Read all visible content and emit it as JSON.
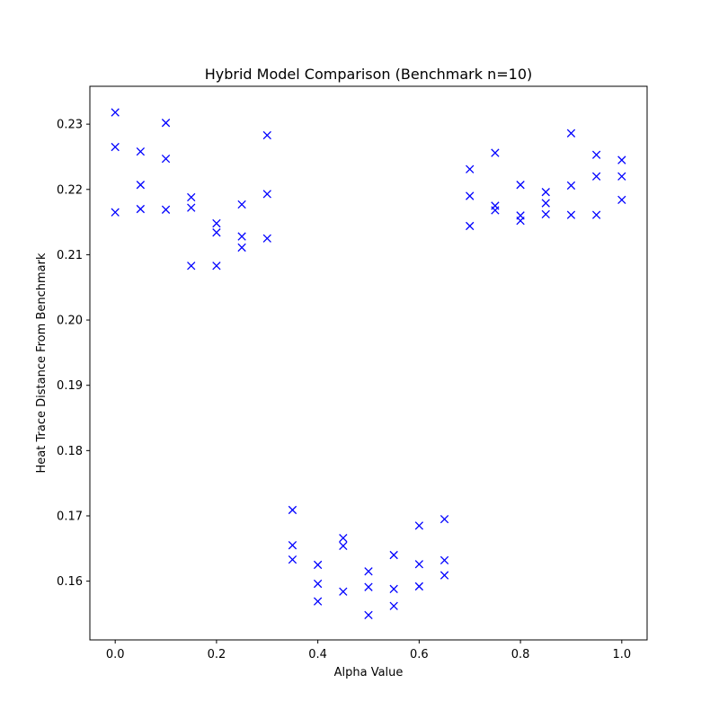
{
  "chart_data": {
    "type": "scatter",
    "title": "Hybrid Model Comparison (Benchmark n=10)",
    "xlabel": "Alpha Value",
    "ylabel": "Heat Trace Distance From Benchmark",
    "xlim": [
      -0.05,
      1.05
    ],
    "ylim": [
      0.151,
      0.2358
    ],
    "x_ticks": [
      0.0,
      0.2,
      0.4,
      0.6,
      0.8,
      1.0
    ],
    "x_tick_labels": [
      "0.0",
      "0.2",
      "0.4",
      "0.6",
      "0.8",
      "1.0"
    ],
    "y_ticks": [
      0.16,
      0.17,
      0.18,
      0.19,
      0.2,
      0.21,
      0.22,
      0.23
    ],
    "y_tick_labels": [
      "0.16",
      "0.17",
      "0.18",
      "0.19",
      "0.20",
      "0.21",
      "0.22",
      "0.23"
    ],
    "grid": false,
    "marker": "x",
    "color": "#0000ff",
    "series": [
      {
        "points": [
          [
            0.0,
            0.2318
          ],
          [
            0.0,
            0.2265
          ],
          [
            0.0,
            0.2165
          ],
          [
            0.05,
            0.2258
          ],
          [
            0.05,
            0.2207
          ],
          [
            0.05,
            0.217
          ],
          [
            0.1,
            0.2302
          ],
          [
            0.1,
            0.2247
          ],
          [
            0.1,
            0.2169
          ],
          [
            0.15,
            0.2188
          ],
          [
            0.15,
            0.2172
          ],
          [
            0.15,
            0.2083
          ],
          [
            0.2,
            0.2148
          ],
          [
            0.2,
            0.2134
          ],
          [
            0.2,
            0.2083
          ],
          [
            0.25,
            0.2177
          ],
          [
            0.25,
            0.2128
          ],
          [
            0.25,
            0.2111
          ],
          [
            0.3,
            0.2283
          ],
          [
            0.3,
            0.2193
          ],
          [
            0.3,
            0.2125
          ],
          [
            0.35,
            0.1709
          ],
          [
            0.35,
            0.1655
          ],
          [
            0.35,
            0.1633
          ],
          [
            0.4,
            0.1625
          ],
          [
            0.4,
            0.1596
          ],
          [
            0.4,
            0.1569
          ],
          [
            0.45,
            0.1666
          ],
          [
            0.45,
            0.1654
          ],
          [
            0.45,
            0.1584
          ],
          [
            0.5,
            0.1615
          ],
          [
            0.5,
            0.1591
          ],
          [
            0.5,
            0.1548
          ],
          [
            0.55,
            0.164
          ],
          [
            0.55,
            0.1588
          ],
          [
            0.55,
            0.1562
          ],
          [
            0.6,
            0.1685
          ],
          [
            0.6,
            0.1626
          ],
          [
            0.6,
            0.1592
          ],
          [
            0.65,
            0.1695
          ],
          [
            0.65,
            0.1632
          ],
          [
            0.65,
            0.1609
          ],
          [
            0.7,
            0.2231
          ],
          [
            0.7,
            0.219
          ],
          [
            0.7,
            0.2144
          ],
          [
            0.75,
            0.2256
          ],
          [
            0.75,
            0.2175
          ],
          [
            0.75,
            0.2168
          ],
          [
            0.8,
            0.2207
          ],
          [
            0.8,
            0.216
          ],
          [
            0.8,
            0.2152
          ],
          [
            0.85,
            0.2196
          ],
          [
            0.85,
            0.2179
          ],
          [
            0.85,
            0.2162
          ],
          [
            0.9,
            0.2286
          ],
          [
            0.9,
            0.2206
          ],
          [
            0.9,
            0.2161
          ],
          [
            0.95,
            0.2253
          ],
          [
            0.95,
            0.222
          ],
          [
            0.95,
            0.2161
          ],
          [
            1.0,
            0.2245
          ],
          [
            1.0,
            0.222
          ],
          [
            1.0,
            0.2184
          ]
        ]
      }
    ]
  }
}
